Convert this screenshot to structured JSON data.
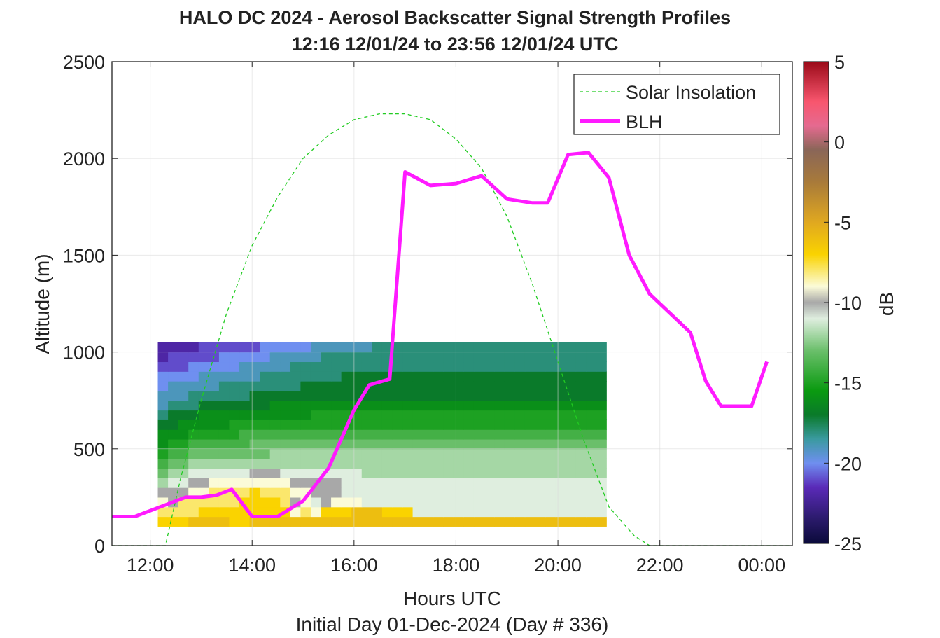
{
  "chart_data": {
    "type": "heatmap",
    "title": "HALO DC 2024 - Aerosol Backscatter Signal Strength Profiles",
    "subtitle": "12:16 12/01/24 to 23:56 12/01/24  UTC",
    "xlabel": "Hours UTC",
    "xlabel2": "Initial Day 01-Dec-2024 (Day # 336)",
    "ylabel": "Altitude (m)",
    "xlim": [
      11.25,
      24.6
    ],
    "ylim": [
      0,
      2500
    ],
    "x_ticks": [
      {
        "value": 12,
        "label": "12:00"
      },
      {
        "value": 14,
        "label": "14:00"
      },
      {
        "value": 16,
        "label": "16:00"
      },
      {
        "value": 18,
        "label": "18:00"
      },
      {
        "value": 20,
        "label": "20:00"
      },
      {
        "value": 22,
        "label": "22:00"
      },
      {
        "value": 24,
        "label": "00:00"
      }
    ],
    "y_ticks": [
      {
        "value": 0,
        "label": "0"
      },
      {
        "value": 500,
        "label": "500"
      },
      {
        "value": 1000,
        "label": "1000"
      },
      {
        "value": 1500,
        "label": "1500"
      },
      {
        "value": 2000,
        "label": "2000"
      },
      {
        "value": 2500,
        "label": "2500"
      }
    ],
    "grid": true,
    "colorbar": {
      "label": "dB",
      "range": [
        -25,
        5
      ],
      "ticks": [
        {
          "value": 5,
          "label": "5"
        },
        {
          "value": 0,
          "label": "0"
        },
        {
          "value": -5,
          "label": "-5"
        },
        {
          "value": -10,
          "label": "-10"
        },
        {
          "value": -15,
          "label": "-15"
        },
        {
          "value": -20,
          "label": "-20"
        },
        {
          "value": -25,
          "label": "-25"
        }
      ],
      "stops": [
        {
          "value": -25,
          "color": "#0a0a3a"
        },
        {
          "value": -23.5,
          "color": "#2a1a6a"
        },
        {
          "value": -21.5,
          "color": "#5a2ab8"
        },
        {
          "value": -20,
          "color": "#6f8ff0"
        },
        {
          "value": -18.5,
          "color": "#3a9aa0"
        },
        {
          "value": -17,
          "color": "#0a7a2a"
        },
        {
          "value": -15.5,
          "color": "#0a9a10"
        },
        {
          "value": -13,
          "color": "#6abf6a"
        },
        {
          "value": -11,
          "color": "#dfeedf"
        },
        {
          "value": -10,
          "color": "#a8a8a8"
        },
        {
          "value": -9,
          "color": "#fbfbd8"
        },
        {
          "value": -7,
          "color": "#fad300"
        },
        {
          "value": -5,
          "color": "#e0a820"
        },
        {
          "value": -2.5,
          "color": "#a87a3a"
        },
        {
          "value": -0.5,
          "color": "#8a6658"
        },
        {
          "value": 1,
          "color": "#e56a90"
        },
        {
          "value": 2.5,
          "color": "#f8566e"
        },
        {
          "value": 5,
          "color": "#9a0a18"
        }
      ]
    },
    "heatmap": {
      "x_start": 12.15,
      "x_step": 0.2,
      "y_start": 100,
      "y_step": 50,
      "z_rows": [
        [
          -7,
          -7,
          -7,
          -6,
          -6,
          -6,
          -6,
          -7,
          -7,
          -6,
          -6,
          -6,
          -6,
          -6,
          -6,
          -6,
          -6,
          -6,
          -6,
          -6,
          -6,
          -6,
          -6,
          -6,
          -6,
          -6,
          -6,
          -6,
          -6,
          -6,
          -6,
          -6,
          -6,
          -6,
          -6,
          -6,
          -6,
          -6,
          -6,
          -6,
          -6,
          -6,
          -6,
          -6
        ],
        [
          -8,
          -8,
          -8,
          -8,
          -7,
          -7,
          -7,
          -7,
          -7,
          -7,
          -7,
          -7,
          -7,
          -9,
          -8,
          -9,
          -7,
          -7,
          -7,
          -6,
          -6,
          -6,
          -7,
          -7,
          -7,
          -11,
          -11,
          -11,
          -11,
          -11,
          -11,
          -11,
          -11,
          -11,
          -11,
          -11,
          -11,
          -11,
          -11,
          -11,
          -11,
          -11,
          -11,
          -11
        ],
        [
          -9,
          -10,
          -8,
          -8,
          -8,
          -8,
          -8,
          -8,
          -7,
          -7,
          -7,
          -7,
          -8,
          -10,
          -9,
          -11,
          -10,
          -9,
          -9,
          -9,
          -11,
          -11,
          -11,
          -11,
          -11,
          -11,
          -11,
          -11,
          -11,
          -11,
          -11,
          -11,
          -11,
          -11,
          -11,
          -11,
          -11,
          -11,
          -11,
          -11,
          -11,
          -11,
          -11,
          -11
        ],
        [
          -10,
          -10,
          -10,
          -9,
          -9,
          -8,
          -8,
          -8,
          -8,
          -7,
          -8,
          -8,
          -8,
          -9,
          -9,
          -10,
          -10,
          -10,
          -11,
          -11,
          -11,
          -11,
          -11,
          -11,
          -11,
          -11,
          -11,
          -11,
          -11,
          -11,
          -11,
          -11,
          -11,
          -11,
          -11,
          -11,
          -11,
          -11,
          -11,
          -11,
          -11,
          -11,
          -11,
          -11
        ],
        [
          -12,
          -11,
          -11,
          -10,
          -10,
          -9,
          -9,
          -9,
          -9,
          -9,
          -9,
          -9,
          -9,
          -10,
          -10,
          -10,
          -10,
          -10,
          -11,
          -11,
          -11,
          -11,
          -11,
          -11,
          -11,
          -11,
          -11,
          -11,
          -11,
          -11,
          -11,
          -11,
          -11,
          -11,
          -11,
          -11,
          -11,
          -11,
          -11,
          -11,
          -11,
          -11,
          -11,
          -11
        ],
        [
          -13,
          -12,
          -12,
          -11,
          -11,
          -11,
          -11,
          -11,
          -11,
          -10,
          -10,
          -10,
          -11,
          -11,
          -11,
          -11,
          -11,
          -11,
          -11,
          -11,
          -12,
          -12,
          -12,
          -12,
          -12,
          -12,
          -12,
          -12,
          -12,
          -12,
          -12,
          -12,
          -12,
          -12,
          -12,
          -12,
          -12,
          -12,
          -12,
          -12,
          -12,
          -12,
          -12,
          -12
        ],
        [
          -14,
          -13,
          -13,
          -12,
          -12,
          -12,
          -12,
          -12,
          -12,
          -12,
          -12,
          -12,
          -12,
          -12,
          -12,
          -12,
          -12,
          -12,
          -12,
          -12,
          -12,
          -12,
          -12,
          -12,
          -12,
          -12,
          -12,
          -12,
          -12,
          -12,
          -12,
          -12,
          -12,
          -12,
          -12,
          -12,
          -12,
          -12,
          -12,
          -12,
          -12,
          -12,
          -12,
          -12
        ],
        [
          -15,
          -14,
          -14,
          -13,
          -13,
          -13,
          -13,
          -13,
          -13,
          -13,
          -13,
          -12,
          -12,
          -12,
          -12,
          -12,
          -12,
          -12,
          -12,
          -12,
          -12,
          -12,
          -12,
          -12,
          -12,
          -12,
          -12,
          -12,
          -12,
          -12,
          -12,
          -12,
          -12,
          -12,
          -12,
          -12,
          -12,
          -12,
          -12,
          -12,
          -12,
          -12,
          -12,
          -12
        ],
        [
          -16,
          -15,
          -15,
          -14,
          -14,
          -14,
          -14,
          -14,
          -14,
          -13,
          -13,
          -13,
          -13,
          -13,
          -13,
          -13,
          -13,
          -13,
          -13,
          -13,
          -13,
          -13,
          -13,
          -13,
          -13,
          -13,
          -13,
          -13,
          -13,
          -13,
          -13,
          -13,
          -13,
          -13,
          -13,
          -13,
          -13,
          -13,
          -13,
          -13,
          -13,
          -13,
          -13,
          -13
        ],
        [
          -16,
          -16,
          -16,
          -15,
          -15,
          -15,
          -15,
          -15,
          -14,
          -14,
          -14,
          -14,
          -14,
          -14,
          -14,
          -14,
          -14,
          -14,
          -14,
          -14,
          -14,
          -14,
          -14,
          -14,
          -14,
          -14,
          -14,
          -14,
          -14,
          -14,
          -14,
          -14,
          -14,
          -14,
          -14,
          -14,
          -14,
          -14,
          -14,
          -14,
          -14,
          -14,
          -14,
          -14
        ],
        [
          -17,
          -17,
          -16,
          -16,
          -16,
          -16,
          -16,
          -15,
          -15,
          -15,
          -15,
          -15,
          -15,
          -15,
          -15,
          -15,
          -15,
          -15,
          -15,
          -15,
          -15,
          -15,
          -15,
          -15,
          -15,
          -15,
          -15,
          -15,
          -15,
          -15,
          -15,
          -15,
          -15,
          -15,
          -15,
          -15,
          -15,
          -15,
          -15,
          -15,
          -15,
          -15,
          -15,
          -15
        ],
        [
          -18,
          -17,
          -17,
          -17,
          -16,
          -16,
          -16,
          -16,
          -16,
          -16,
          -16,
          -16,
          -16,
          -16,
          -16,
          -15,
          -15,
          -15,
          -15,
          -15,
          -15,
          -15,
          -15,
          -15,
          -15,
          -15,
          -15,
          -15,
          -15,
          -15,
          -15,
          -15,
          -15,
          -15,
          -15,
          -15,
          -15,
          -15,
          -15,
          -15,
          -15,
          -15,
          -15,
          -15
        ],
        [
          -19,
          -18,
          -18,
          -18,
          -17,
          -17,
          -17,
          -17,
          -17,
          -17,
          -17,
          -16,
          -16,
          -16,
          -16,
          -16,
          -16,
          -16,
          -16,
          -16,
          -16,
          -16,
          -16,
          -16,
          -16,
          -16,
          -16,
          -16,
          -16,
          -16,
          -16,
          -16,
          -16,
          -16,
          -16,
          -16,
          -16,
          -16,
          -16,
          -16,
          -16,
          -16,
          -16,
          -16
        ],
        [
          -19,
          -19,
          -19,
          -18,
          -18,
          -18,
          -18,
          -18,
          -18,
          -17,
          -17,
          -17,
          -17,
          -17,
          -17,
          -17,
          -17,
          -17,
          -17,
          -17,
          -17,
          -17,
          -17,
          -17,
          -17,
          -17,
          -17,
          -17,
          -17,
          -17,
          -17,
          -17,
          -17,
          -17,
          -17,
          -17,
          -17,
          -17,
          -17,
          -17,
          -17,
          -17,
          -17,
          -17
        ],
        [
          -20,
          -19,
          -19,
          -19,
          -19,
          -19,
          -18,
          -18,
          -18,
          -18,
          -18,
          -18,
          -18,
          -18,
          -17,
          -17,
          -17,
          -17,
          -17,
          -17,
          -17,
          -17,
          -17,
          -17,
          -17,
          -17,
          -17,
          -17,
          -17,
          -17,
          -17,
          -17,
          -17,
          -17,
          -17,
          -17,
          -17,
          -17,
          -17,
          -17,
          -17,
          -17,
          -17,
          -17
        ],
        [
          -20,
          -20,
          -20,
          -20,
          -19,
          -19,
          -19,
          -19,
          -19,
          -19,
          -18,
          -18,
          -18,
          -18,
          -18,
          -18,
          -18,
          -18,
          -17,
          -17,
          -17,
          -17,
          -17,
          -17,
          -17,
          -17,
          -17,
          -17,
          -17,
          -17,
          -17,
          -17,
          -17,
          -17,
          -17,
          -17,
          -17,
          -17,
          -17,
          -17,
          -17,
          -17,
          -17,
          -17
        ],
        [
          -21,
          -21,
          -21,
          -20,
          -20,
          -20,
          -20,
          -20,
          -19,
          -19,
          -19,
          -19,
          -19,
          -18,
          -18,
          -18,
          -18,
          -18,
          -18,
          -18,
          -18,
          -18,
          -18,
          -18,
          -18,
          -18,
          -18,
          -18,
          -18,
          -18,
          -18,
          -18,
          -18,
          -18,
          -18,
          -18,
          -18,
          -18,
          -18,
          -18,
          -18,
          -18,
          -18,
          -18
        ],
        [
          -22,
          -21,
          -21,
          -21,
          -21,
          -21,
          -20,
          -20,
          -20,
          -20,
          -20,
          -19,
          -19,
          -19,
          -19,
          -19,
          -18,
          -18,
          -18,
          -18,
          -18,
          -18,
          -18,
          -18,
          -18,
          -18,
          -18,
          -18,
          -18,
          -18,
          -18,
          -18,
          -18,
          -18,
          -18,
          -18,
          -18,
          -18,
          -18,
          -18,
          -18,
          -18,
          -18,
          -18
        ],
        [
          -22,
          -22,
          -22,
          -22,
          -21,
          -21,
          -21,
          -21,
          -21,
          -21,
          -20,
          -20,
          -20,
          -20,
          -20,
          -19,
          -19,
          -19,
          -19,
          -19,
          -19,
          -18,
          -18,
          -18,
          -18,
          -18,
          -18,
          -18,
          -18,
          -18,
          -18,
          -18,
          -18,
          -18,
          -18,
          -18,
          -18,
          -18,
          -18,
          -18,
          -18,
          -18,
          -18,
          -18
        ]
      ]
    },
    "series": [
      {
        "name": "Solar Insolation",
        "style": "dashed",
        "color": "#22cc22",
        "x": [
          11.25,
          12.1,
          12.3,
          12.6,
          13.0,
          13.5,
          14.0,
          14.5,
          15.0,
          15.5,
          16.0,
          16.5,
          17.0,
          17.5,
          18.0,
          18.5,
          19.0,
          19.5,
          20.0,
          20.5,
          21.0,
          21.5,
          21.8,
          24.6
        ],
        "y": [
          0,
          0,
          0,
          350,
          750,
          1200,
          1550,
          1800,
          2000,
          2120,
          2200,
          2230,
          2230,
          2200,
          2100,
          1950,
          1700,
          1350,
          950,
          550,
          200,
          50,
          0,
          0
        ]
      },
      {
        "name": "BLH",
        "style": "solid",
        "color": "#ff1aff",
        "x": [
          11.25,
          11.7,
          12.2,
          12.7,
          13.0,
          13.3,
          13.6,
          14.0,
          14.5,
          15.0,
          15.5,
          16.0,
          16.3,
          16.7,
          17.0,
          17.5,
          18.0,
          18.5,
          19.0,
          19.5,
          19.8,
          20.2,
          20.6,
          21.0,
          21.4,
          21.8,
          22.2,
          22.6,
          22.9,
          23.2,
          23.5,
          23.8,
          24.1
        ],
        "y": [
          150,
          150,
          200,
          250,
          250,
          260,
          290,
          150,
          150,
          230,
          400,
          700,
          830,
          860,
          1930,
          1860,
          1870,
          1910,
          1790,
          1770,
          1770,
          2020,
          2030,
          1900,
          1500,
          1300,
          1200,
          1100,
          850,
          720,
          720,
          720,
          950
        ]
      }
    ],
    "legend": {
      "position": "top-right",
      "entries": [
        "Solar Insolation",
        "BLH"
      ]
    }
  }
}
